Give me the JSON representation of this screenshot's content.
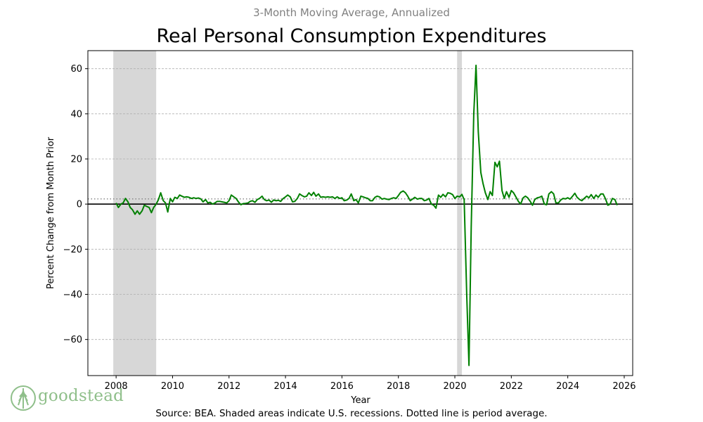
{
  "chart_data": {
    "type": "line",
    "subtitle": "3-Month Moving Average, Annualized",
    "title": "Real Personal Consumption Expenditures",
    "xlabel": "Year",
    "ylabel": "Percent Change from Month Prior",
    "xlim": [
      2007.0,
      2026.3
    ],
    "ylim": [
      -76,
      68
    ],
    "x_ticks": [
      2008,
      2010,
      2012,
      2014,
      2016,
      2018,
      2020,
      2022,
      2024,
      2026
    ],
    "y_ticks": [
      -60,
      -40,
      -20,
      0,
      20,
      40,
      60
    ],
    "grid": "horizontal-dashed",
    "average": 2.3,
    "recessions": [
      {
        "start": 2007.9,
        "end": 2009.42
      },
      {
        "start": 2020.08,
        "end": 2020.25
      }
    ],
    "series": [
      {
        "name": "Real PCE 3-month moving average, annualized",
        "color": "#008000",
        "points": [
          [
            2008.0,
            0.5
          ],
          [
            2008.08,
            -1.5
          ],
          [
            2008.17,
            0
          ],
          [
            2008.25,
            0.5
          ],
          [
            2008.33,
            2.5
          ],
          [
            2008.42,
            1
          ],
          [
            2008.5,
            -1.5
          ],
          [
            2008.58,
            -2.5
          ],
          [
            2008.67,
            -4.5
          ],
          [
            2008.75,
            -3
          ],
          [
            2008.83,
            -4.5
          ],
          [
            2008.92,
            -3
          ],
          [
            2009.0,
            -0.5
          ],
          [
            2009.08,
            -1
          ],
          [
            2009.17,
            -1.5
          ],
          [
            2009.25,
            -3.8
          ],
          [
            2009.33,
            -1.5
          ],
          [
            2009.42,
            0
          ],
          [
            2009.5,
            2
          ],
          [
            2009.58,
            5
          ],
          [
            2009.67,
            1.5
          ],
          [
            2009.75,
            0.5
          ],
          [
            2009.83,
            -3.5
          ],
          [
            2009.92,
            2.5
          ],
          [
            2010.0,
            1
          ],
          [
            2010.08,
            3
          ],
          [
            2010.17,
            2.5
          ],
          [
            2010.25,
            4
          ],
          [
            2010.33,
            3.5
          ],
          [
            2010.42,
            3
          ],
          [
            2010.5,
            3.2
          ],
          [
            2010.58,
            3
          ],
          [
            2010.67,
            2.5
          ],
          [
            2010.75,
            2.8
          ],
          [
            2010.83,
            2.5
          ],
          [
            2010.92,
            2.7
          ],
          [
            2011.0,
            2.3
          ],
          [
            2011.08,
            1
          ],
          [
            2011.17,
            2
          ],
          [
            2011.25,
            0.5
          ],
          [
            2011.33,
            0.8
          ],
          [
            2011.42,
            0
          ],
          [
            2011.5,
            0.5
          ],
          [
            2011.58,
            1.2
          ],
          [
            2011.67,
            1.2
          ],
          [
            2011.75,
            1
          ],
          [
            2011.83,
            0.8
          ],
          [
            2011.92,
            0.5
          ],
          [
            2012.0,
            1.5
          ],
          [
            2012.08,
            4
          ],
          [
            2012.17,
            3.2
          ],
          [
            2012.25,
            2.5
          ],
          [
            2012.33,
            1
          ],
          [
            2012.42,
            -0.3
          ],
          [
            2012.5,
            0.2
          ],
          [
            2012.58,
            0.3
          ],
          [
            2012.67,
            0.5
          ],
          [
            2012.75,
            1.2
          ],
          [
            2012.83,
            1.5
          ],
          [
            2012.92,
            0.8
          ],
          [
            2013.0,
            2
          ],
          [
            2013.08,
            2.5
          ],
          [
            2013.17,
            3.5
          ],
          [
            2013.25,
            2
          ],
          [
            2013.33,
            1.5
          ],
          [
            2013.42,
            1.8
          ],
          [
            2013.5,
            0.8
          ],
          [
            2013.58,
            1.8
          ],
          [
            2013.67,
            1.5
          ],
          [
            2013.75,
            1.7
          ],
          [
            2013.83,
            1.2
          ],
          [
            2013.92,
            2.5
          ],
          [
            2014.0,
            3.2
          ],
          [
            2014.08,
            4
          ],
          [
            2014.17,
            3.2
          ],
          [
            2014.25,
            1
          ],
          [
            2014.33,
            1.2
          ],
          [
            2014.42,
            2.5
          ],
          [
            2014.5,
            4.5
          ],
          [
            2014.58,
            3.8
          ],
          [
            2014.67,
            3.2
          ],
          [
            2014.75,
            3.5
          ],
          [
            2014.83,
            5
          ],
          [
            2014.92,
            3.8
          ],
          [
            2015.0,
            5.2
          ],
          [
            2015.08,
            3.5
          ],
          [
            2015.17,
            4.5
          ],
          [
            2015.25,
            3
          ],
          [
            2015.33,
            3.2
          ],
          [
            2015.42,
            3
          ],
          [
            2015.5,
            3.2
          ],
          [
            2015.58,
            3
          ],
          [
            2015.67,
            3.2
          ],
          [
            2015.75,
            2.5
          ],
          [
            2015.83,
            3.2
          ],
          [
            2015.92,
            2.5
          ],
          [
            2016.0,
            2.8
          ],
          [
            2016.08,
            1.5
          ],
          [
            2016.17,
            1.8
          ],
          [
            2016.25,
            2.5
          ],
          [
            2016.33,
            4.5
          ],
          [
            2016.42,
            1.5
          ],
          [
            2016.5,
            2
          ],
          [
            2016.58,
            0.5
          ],
          [
            2016.67,
            3.5
          ],
          [
            2016.75,
            3.2
          ],
          [
            2016.83,
            2.8
          ],
          [
            2016.92,
            2.5
          ],
          [
            2017.0,
            1.5
          ],
          [
            2017.08,
            1.5
          ],
          [
            2017.17,
            3
          ],
          [
            2017.25,
            3.5
          ],
          [
            2017.33,
            3.2
          ],
          [
            2017.42,
            2.2
          ],
          [
            2017.5,
            2.5
          ],
          [
            2017.58,
            2.2
          ],
          [
            2017.67,
            2
          ],
          [
            2017.75,
            2.5
          ],
          [
            2017.83,
            2.8
          ],
          [
            2017.92,
            2.5
          ],
          [
            2018.0,
            3.8
          ],
          [
            2018.08,
            5.2
          ],
          [
            2018.17,
            5.8
          ],
          [
            2018.25,
            5
          ],
          [
            2018.33,
            3.5
          ],
          [
            2018.42,
            1.5
          ],
          [
            2018.5,
            2.2
          ],
          [
            2018.58,
            3
          ],
          [
            2018.67,
            2.2
          ],
          [
            2018.75,
            2.5
          ],
          [
            2018.83,
            2.5
          ],
          [
            2018.92,
            1.5
          ],
          [
            2019.0,
            1.8
          ],
          [
            2019.08,
            2.5
          ],
          [
            2019.17,
            0
          ],
          [
            2019.25,
            -0.5
          ],
          [
            2019.33,
            -1.8
          ],
          [
            2019.42,
            4
          ],
          [
            2019.5,
            3
          ],
          [
            2019.58,
            4.3
          ],
          [
            2019.67,
            3.2
          ],
          [
            2019.75,
            5
          ],
          [
            2019.83,
            4.8
          ],
          [
            2019.92,
            4.2
          ],
          [
            2020.0,
            2.5
          ],
          [
            2020.08,
            3.5
          ],
          [
            2020.17,
            3.2
          ],
          [
            2020.25,
            4.3
          ],
          [
            2020.33,
            2
          ],
          [
            2020.42,
            -40
          ],
          [
            2020.5,
            -71.5
          ],
          [
            2020.58,
            -10
          ],
          [
            2020.67,
            40
          ],
          [
            2020.75,
            61.5
          ],
          [
            2020.83,
            32
          ],
          [
            2020.92,
            14
          ],
          [
            2021.0,
            9
          ],
          [
            2021.08,
            5
          ],
          [
            2021.17,
            2
          ],
          [
            2021.25,
            5.5
          ],
          [
            2021.33,
            3.8
          ],
          [
            2021.42,
            18.5
          ],
          [
            2021.5,
            16.5
          ],
          [
            2021.58,
            19
          ],
          [
            2021.67,
            6
          ],
          [
            2021.75,
            2.5
          ],
          [
            2021.83,
            5.5
          ],
          [
            2021.92,
            3
          ],
          [
            2022.0,
            6
          ],
          [
            2022.08,
            5
          ],
          [
            2022.17,
            3
          ],
          [
            2022.25,
            1.2
          ],
          [
            2022.33,
            0
          ],
          [
            2022.42,
            2.8
          ],
          [
            2022.5,
            3.5
          ],
          [
            2022.58,
            2.8
          ],
          [
            2022.67,
            1.2
          ],
          [
            2022.75,
            -0.5
          ],
          [
            2022.83,
            2
          ],
          [
            2022.92,
            2.8
          ],
          [
            2023.0,
            3
          ],
          [
            2023.08,
            3.5
          ],
          [
            2023.17,
            0
          ],
          [
            2023.25,
            -0.3
          ],
          [
            2023.33,
            4.5
          ],
          [
            2023.42,
            5.5
          ],
          [
            2023.5,
            4.5
          ],
          [
            2023.58,
            0.5
          ],
          [
            2023.67,
            0.5
          ],
          [
            2023.75,
            1.8
          ],
          [
            2023.83,
            2.5
          ],
          [
            2023.92,
            2.3
          ],
          [
            2024.0,
            2.8
          ],
          [
            2024.08,
            2.2
          ],
          [
            2024.17,
            3.5
          ],
          [
            2024.25,
            4.8
          ],
          [
            2024.33,
            3
          ],
          [
            2024.42,
            2
          ],
          [
            2024.5,
            1.5
          ],
          [
            2024.58,
            2.5
          ],
          [
            2024.67,
            3.5
          ],
          [
            2024.75,
            2.8
          ],
          [
            2024.83,
            4.2
          ],
          [
            2024.92,
            2.5
          ],
          [
            2025.0,
            4
          ],
          [
            2025.08,
            3
          ],
          [
            2025.17,
            4.5
          ],
          [
            2025.25,
            4.5
          ],
          [
            2025.33,
            2.5
          ],
          [
            2025.42,
            -0.5
          ],
          [
            2025.5,
            0
          ],
          [
            2025.58,
            2.5
          ],
          [
            2025.67,
            2
          ],
          [
            2025.75,
            -0.5
          ]
        ]
      }
    ]
  },
  "footer": {
    "source": "Source: BEA. Shaded areas indicate U.S. recessions. Dotted line is period average.",
    "logo_text": "goodstead"
  }
}
